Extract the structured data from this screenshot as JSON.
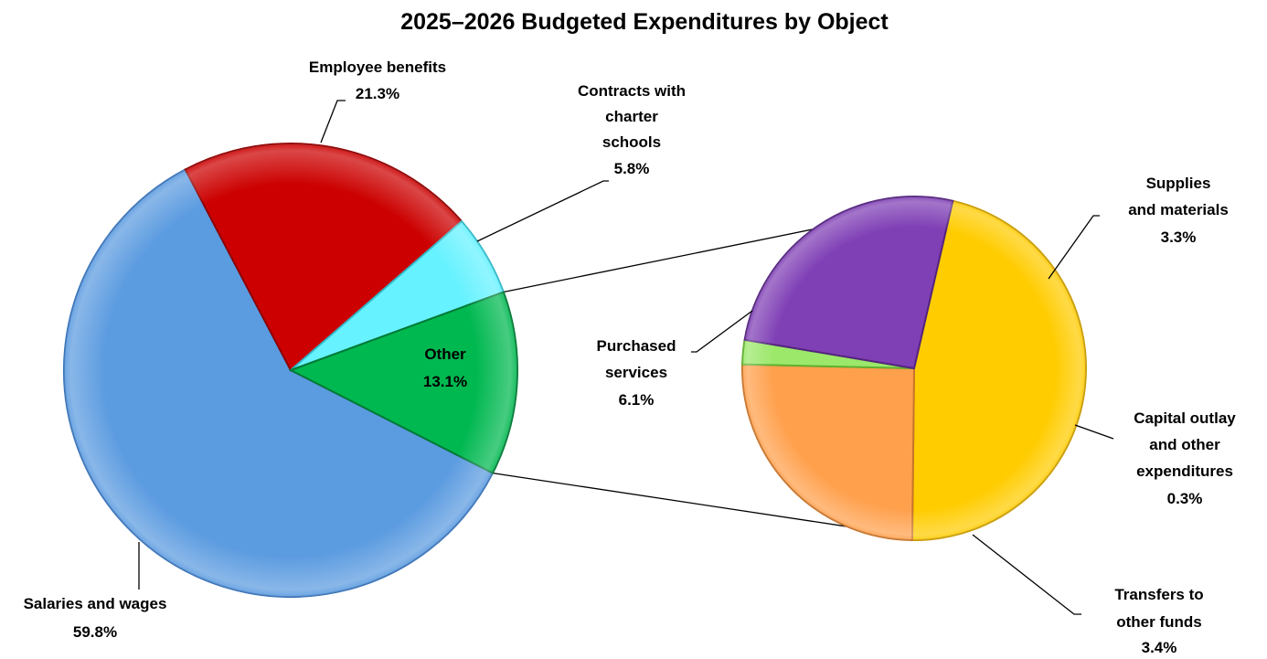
{
  "chart_data": {
    "type": "pie",
    "subtype": "pie-of-pie",
    "title": "2025–2026 Budgeted Expenditures by Object",
    "main_pie": {
      "slices": [
        {
          "label": "Salaries and wages",
          "value": 59.8,
          "value_label": "59.8%",
          "color": "#5b9be0",
          "edge": "#3a73b8"
        },
        {
          "label": "Employee benefits",
          "value": 21.3,
          "value_label": "21.3%",
          "color": "#cc0000",
          "edge": "#8e0000"
        },
        {
          "label": "Contracts with charter schools",
          "value": 5.8,
          "value_label": "5.8%",
          "color": "#66f2ff",
          "edge": "#35b9c8"
        },
        {
          "label": "Other",
          "value": 13.1,
          "value_label": "13.1%",
          "color": "#00b850",
          "edge": "#007a35"
        }
      ]
    },
    "secondary_pie": {
      "of": "Other",
      "slices": [
        {
          "label": "Purchased services",
          "value": 6.1,
          "value_label": "6.1%",
          "color": "#ffcc00",
          "edge": "#c99a00"
        },
        {
          "label": "Supplies and materials",
          "value": 3.3,
          "value_label": "3.3%",
          "color": "#ffa04c",
          "edge": "#c8742a"
        },
        {
          "label": "Capital outlay and other expenditures",
          "value": 0.3,
          "value_label": "0.3%",
          "color": "#9be86a",
          "edge": "#5fb030"
        },
        {
          "label": "Transfers to other funds",
          "value": 3.4,
          "value_label": "3.4%",
          "color": "#7f3fb5",
          "edge": "#54247e"
        }
      ]
    },
    "labels": {
      "salaries": [
        "Salaries and wages",
        "59.8%"
      ],
      "benefits": [
        "Employee benefits",
        "21.3%"
      ],
      "charter": [
        "Contracts with",
        "charter",
        "schools",
        "5.8%"
      ],
      "other": [
        "Other",
        "13.1%"
      ],
      "purchased": [
        "Purchased",
        "services",
        "6.1%"
      ],
      "supplies": [
        "Supplies",
        "and materials",
        "3.3%"
      ],
      "capital": [
        "Capital outlay",
        "and other",
        "expenditures",
        "0.3%"
      ],
      "transfers": [
        "Transfers to",
        "other funds",
        "3.4%"
      ]
    }
  }
}
